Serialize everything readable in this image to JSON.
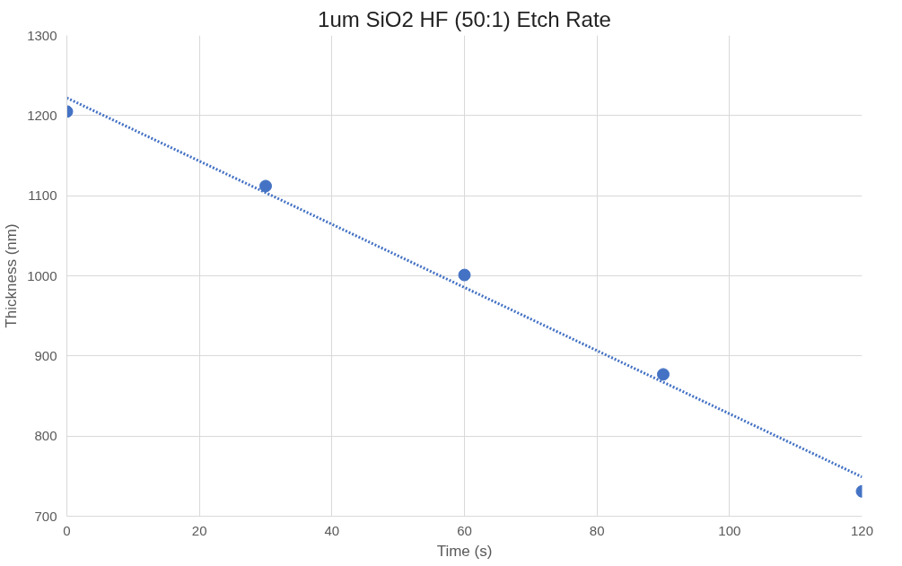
{
  "chart_data": {
    "type": "scatter",
    "title": "1um SiO2 HF (50:1) Etch Rate",
    "xlabel": "Time (s)",
    "ylabel": "Thickness (nm)",
    "x": [
      0,
      30,
      60,
      90,
      120
    ],
    "series": [
      {
        "color": "#4472c4",
        "values": [
          1205,
          1112,
          1001,
          877,
          731
        ],
        "marker": "circle"
      },
      {
        "type": "line",
        "color": "#4472c4",
        "x": [
          0,
          120
        ],
        "values": [
          1222,
          749
        ],
        "line_style": "dotted"
      }
    ],
    "xlim": [
      0,
      120
    ],
    "xticks": [
      0,
      20,
      40,
      60,
      80,
      100,
      120
    ],
    "ylim": [
      700,
      1300
    ],
    "yticks": [
      700,
      800,
      900,
      1000,
      1100,
      1200,
      1300
    ],
    "grid": true
  }
}
